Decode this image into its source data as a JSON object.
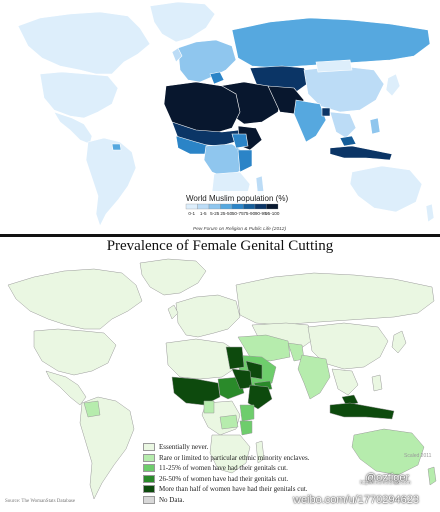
{
  "map1": {
    "legend_title": "World Muslim population (%)",
    "legend_ranges": [
      "0-1",
      "1-5",
      "5-25",
      "25-50",
      "50-75",
      "75-90",
      "90-95",
      "95-100"
    ],
    "legend_colors": [
      "#ddeefb",
      "#bcdcf6",
      "#8fc6ee",
      "#56a8df",
      "#2b84c7",
      "#155d99",
      "#0b3566",
      "#08172e"
    ],
    "source": "Pew Forum on Religion & Public Life (2012)"
  },
  "map2": {
    "title": "Prevalence of Female Genital Cutting",
    "legend": [
      {
        "label": "Essentially never.",
        "color": "#eaf7e2"
      },
      {
        "label": "Rare or limited to particular ethnic minority enclaves.",
        "color": "#b6ecad"
      },
      {
        "label": "11-25% of women have had their genitals cut.",
        "color": "#6ecd6c"
      },
      {
        "label": "26-50% of women have had their genitals cut.",
        "color": "#2a8a2a"
      },
      {
        "label": "More than half of women have had their genitals cut.",
        "color": "#0d4a0d"
      },
      {
        "label": "No Data.",
        "color": "#d8d8d8"
      }
    ],
    "source": "Source: The WomanStats Database",
    "credit": "Scaled 2011"
  },
  "watermarks": {
    "handle": "@oztiger",
    "weibo": "weibo.com/u/1770294623",
    "site": "http://i.memedroid.com"
  }
}
